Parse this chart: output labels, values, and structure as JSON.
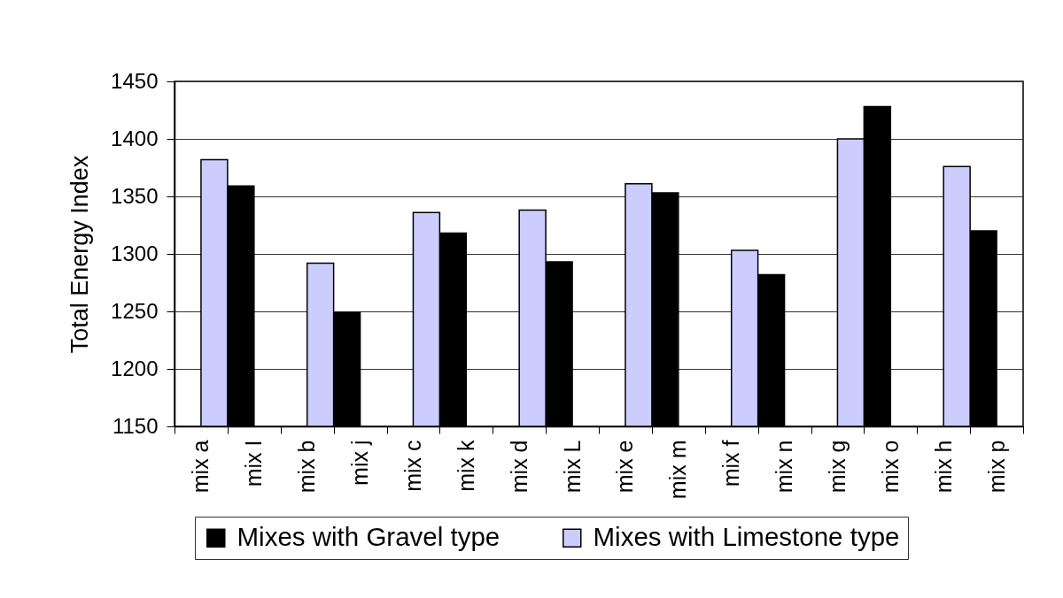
{
  "chart_data": {
    "type": "bar",
    "ylabel": "Total Energy Index",
    "categories": [
      "mix a",
      "mix I",
      "mix b",
      "mix j",
      "mix c",
      "mix k",
      "mix d",
      "mix L",
      "mix e",
      "mix m",
      "mix f",
      "mix n",
      "mix g",
      "mix o",
      "mix h",
      "mix p"
    ],
    "series": [
      {
        "name": "Mixes with Gravel type",
        "color": "#000000",
        "values": [
          null,
          1359,
          null,
          1249,
          null,
          1318,
          null,
          1293,
          null,
          1353,
          null,
          1282,
          null,
          1428,
          null,
          1320
        ]
      },
      {
        "name": "Mixes with Limestone type",
        "color": "#ccccff",
        "values": [
          1382,
          null,
          1292,
          null,
          1336,
          null,
          1338,
          null,
          1361,
          null,
          1303,
          null,
          1400,
          null,
          1376,
          null
        ]
      }
    ],
    "ylim": [
      1150,
      1450
    ],
    "yticks": [
      1150,
      1200,
      1250,
      1300,
      1350,
      1400,
      1450
    ],
    "grid": "y",
    "legend": "bottom"
  }
}
